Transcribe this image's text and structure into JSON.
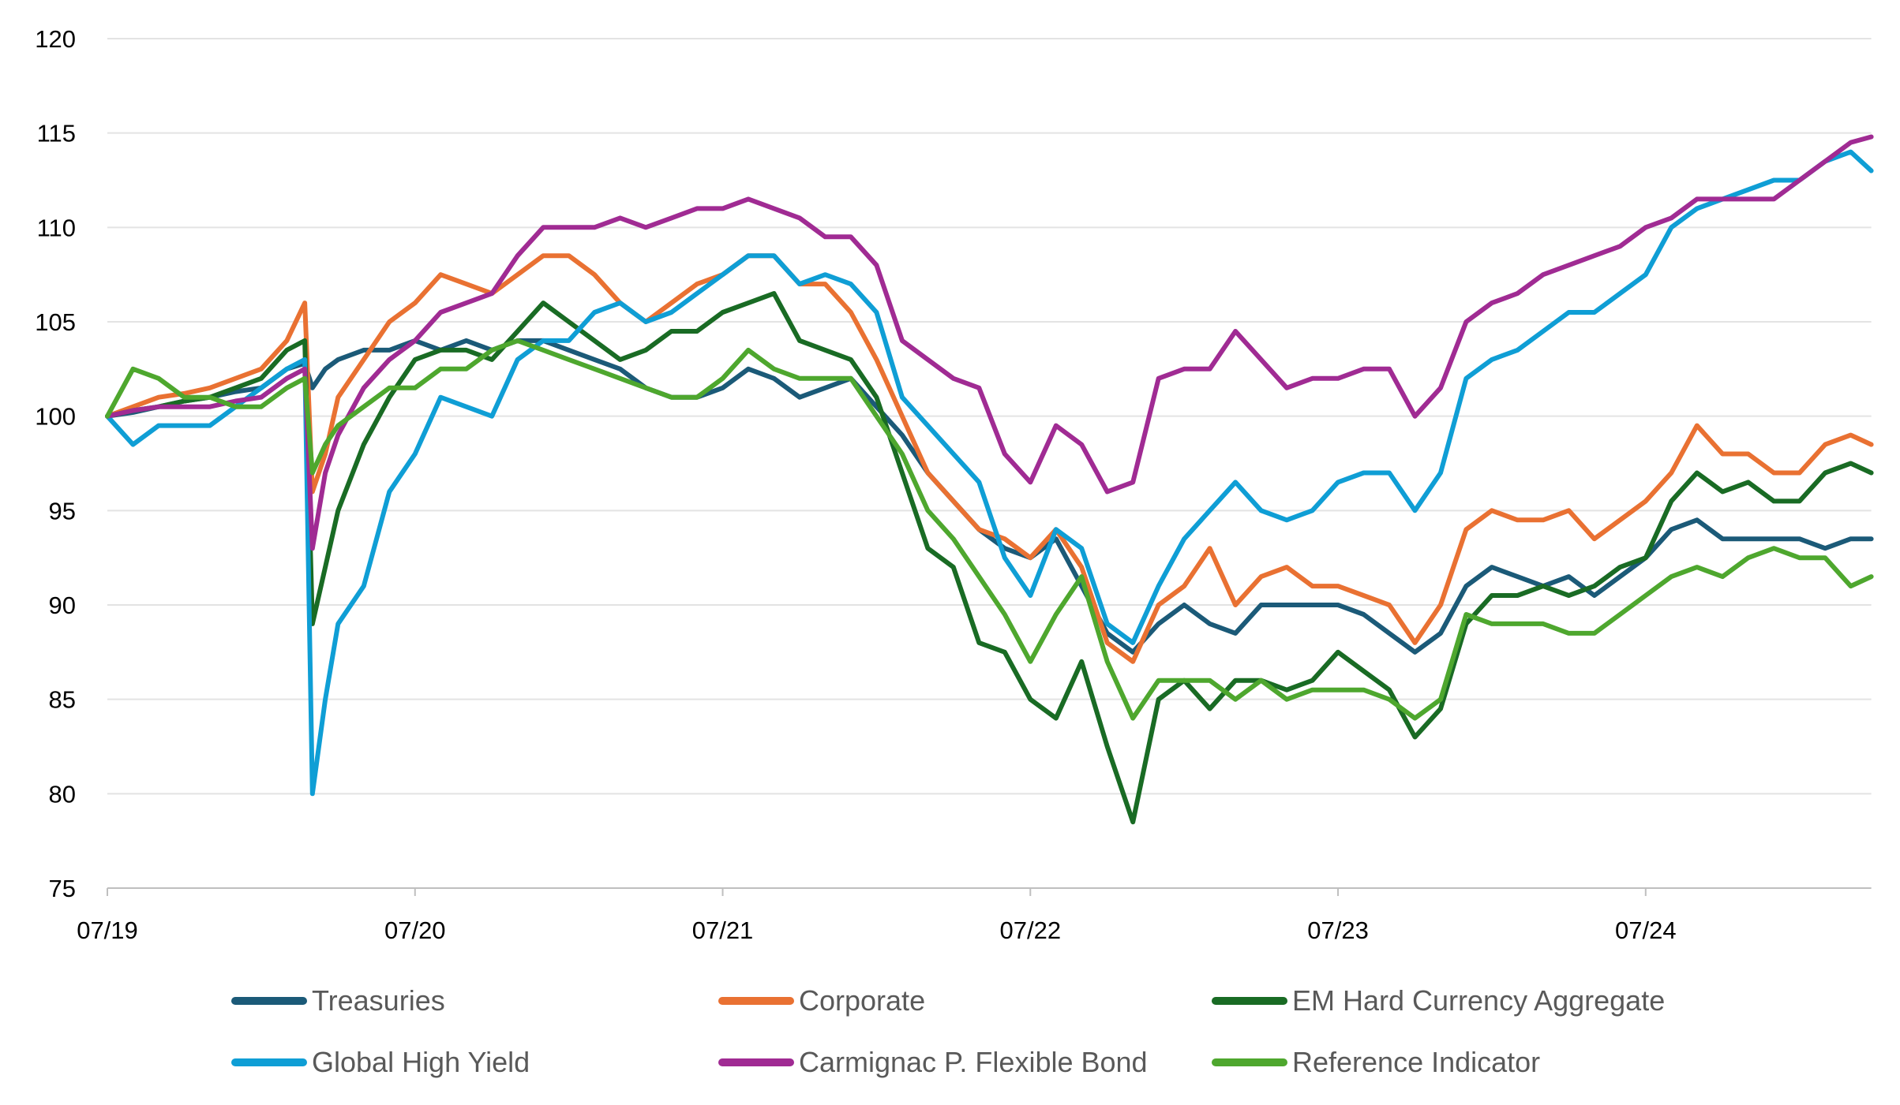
{
  "chart_data": {
    "type": "line",
    "title": "",
    "xlabel": "",
    "ylabel": "",
    "ylim": [
      75,
      120
    ],
    "yticks": [
      "75",
      "80",
      "85",
      "90",
      "95",
      "100",
      "105",
      "110",
      "115",
      "120"
    ],
    "x_unit": "months since 07/2019",
    "xlim": [
      0,
      68.8
    ],
    "xticks": [
      {
        "month": 0,
        "label": "07/19"
      },
      {
        "month": 12,
        "label": "07/20"
      },
      {
        "month": 24,
        "label": "07/21"
      },
      {
        "month": 36,
        "label": "07/22"
      },
      {
        "month": 48,
        "label": "07/23"
      },
      {
        "month": 60,
        "label": "07/24"
      }
    ],
    "grid": true,
    "legend_position": "bottom",
    "x": [
      0,
      1,
      2,
      3,
      4,
      5,
      6,
      7,
      7.7,
      8,
      8.5,
      9,
      10,
      11,
      12,
      13,
      14,
      15,
      16,
      17,
      18,
      19,
      20,
      21,
      22,
      23,
      24,
      25,
      26,
      27,
      28,
      29,
      30,
      31,
      32,
      33,
      34,
      35,
      36,
      37,
      38,
      39,
      40,
      41,
      42,
      43,
      44,
      45,
      46,
      47,
      48,
      49,
      50,
      51,
      52,
      53,
      54,
      55,
      56,
      57,
      58,
      59,
      60,
      61,
      62,
      63,
      64,
      65,
      66,
      67,
      68,
      68.8
    ],
    "series": [
      {
        "name": "Treasuries",
        "color": "#1b5a78",
        "values": [
          100,
          100.2,
          100.5,
          100.8,
          101,
          101.3,
          101.5,
          102.5,
          102.8,
          101.5,
          102.5,
          103,
          103.5,
          103.5,
          104,
          103.5,
          104,
          103.5,
          104,
          104,
          103.5,
          103,
          102.5,
          101.5,
          101,
          101,
          101.5,
          102.5,
          102,
          101,
          101.5,
          102,
          100.5,
          99,
          97,
          95.5,
          94,
          93,
          92.5,
          93.5,
          91,
          88.5,
          87.5,
          89,
          90,
          89,
          88.5,
          90,
          90,
          90,
          90,
          89.5,
          88.5,
          87.5,
          88.5,
          91,
          92,
          91.5,
          91,
          91.5,
          90.5,
          91.5,
          92.5,
          94,
          94.5,
          93.5,
          93.5,
          93.5,
          93.5,
          93,
          93.5,
          93.5
        ]
      },
      {
        "name": "Corporate",
        "color": "#e97132",
        "values": [
          100,
          100.5,
          101,
          101.2,
          101.5,
          102,
          102.5,
          104,
          106,
          96,
          98,
          101,
          103,
          105,
          106,
          107.5,
          107,
          106.5,
          107.5,
          108.5,
          108.5,
          107.5,
          106,
          105,
          106,
          107,
          107.5,
          108.5,
          108.5,
          107,
          107,
          105.5,
          103,
          100,
          97,
          95.5,
          94,
          93.5,
          92.5,
          94,
          92,
          88,
          87,
          90,
          91,
          93,
          90,
          91.5,
          92,
          91,
          91,
          90.5,
          90,
          88,
          90,
          94,
          95,
          94.5,
          94.5,
          95,
          93.5,
          94.5,
          95.5,
          97,
          99.5,
          98,
          98,
          97,
          97,
          98.5,
          99,
          98.5
        ]
      },
      {
        "name": "EM Hard Currency Aggregate",
        "color": "#196b24",
        "values": [
          100,
          100.3,
          100.5,
          100.8,
          101,
          101.5,
          102,
          103.5,
          104,
          89,
          92,
          95,
          98.5,
          101,
          103,
          103.5,
          103.5,
          103,
          104.5,
          106,
          105,
          104,
          103,
          103.5,
          104.5,
          104.5,
          105.5,
          106,
          106.5,
          104,
          103.5,
          103,
          101,
          97,
          93,
          92,
          88,
          87.5,
          85,
          84,
          87,
          82.5,
          78.5,
          85,
          86,
          84.5,
          86,
          86,
          85.5,
          86,
          87.5,
          86.5,
          85.5,
          83,
          84.5,
          89,
          90.5,
          90.5,
          91,
          90.5,
          91,
          92,
          92.5,
          95.5,
          97,
          96,
          96.5,
          95.5,
          95.5,
          97,
          97.5,
          97
        ]
      },
      {
        "name": "Global High Yield",
        "color": "#0f9ed5",
        "values": [
          100,
          98.5,
          99.5,
          99.5,
          99.5,
          100.5,
          101.5,
          102.5,
          103,
          80,
          85,
          89,
          91,
          96,
          98,
          101,
          100.5,
          100,
          103,
          104,
          104,
          105.5,
          106,
          105,
          105.5,
          106.5,
          107.5,
          108.5,
          108.5,
          107,
          107.5,
          107,
          105.5,
          101,
          99.5,
          98,
          96.5,
          92.5,
          90.5,
          94,
          93,
          89,
          88,
          91,
          93.5,
          95,
          96.5,
          95,
          94.5,
          95,
          96.5,
          97,
          97,
          95,
          97,
          102,
          103,
          103.5,
          104.5,
          105.5,
          105.5,
          106.5,
          107.5,
          110,
          111,
          111.5,
          112,
          112.5,
          112.5,
          113.5,
          114,
          113
        ]
      },
      {
        "name": "Carmignac P. Flexible Bond",
        "color": "#a02b93",
        "values": [
          100,
          100.3,
          100.5,
          100.5,
          100.5,
          100.8,
          101,
          102,
          102.5,
          93,
          97,
          99,
          101.5,
          103,
          104,
          105.5,
          106,
          106.5,
          108.5,
          110,
          110,
          110,
          110.5,
          110,
          110.5,
          111,
          111,
          111.5,
          111,
          110.5,
          109.5,
          109.5,
          108,
          104,
          103,
          102,
          101.5,
          98,
          96.5,
          99.5,
          98.5,
          96,
          96.5,
          102,
          102.5,
          102.5,
          104.5,
          103,
          101.5,
          102,
          102,
          102.5,
          102.5,
          100,
          101.5,
          105,
          106,
          106.5,
          107.5,
          108,
          108.5,
          109,
          110,
          110.5,
          111.5,
          111.5,
          111.5,
          111.5,
          112.5,
          113.5,
          114.5,
          114.8
        ]
      },
      {
        "name": "Reference Indicator",
        "color": "#4ea72e",
        "values": [
          100,
          102.5,
          102,
          101,
          101,
          100.5,
          100.5,
          101.5,
          102,
          97,
          98.5,
          99.5,
          100.5,
          101.5,
          101.5,
          102.5,
          102.5,
          103.5,
          104,
          103.5,
          103,
          102.5,
          102,
          101.5,
          101,
          101,
          102,
          103.5,
          102.5,
          102,
          102,
          102,
          100,
          98,
          95,
          93.5,
          91.5,
          89.5,
          87,
          89.5,
          91.5,
          87,
          84,
          86,
          86,
          86,
          85,
          86,
          85,
          85.5,
          85.5,
          85.5,
          85,
          84,
          85,
          89.5,
          89,
          89,
          89,
          88.5,
          88.5,
          89.5,
          90.5,
          91.5,
          92,
          91.5,
          92.5,
          93,
          92.5,
          92.5,
          91,
          91.5
        ]
      }
    ]
  }
}
